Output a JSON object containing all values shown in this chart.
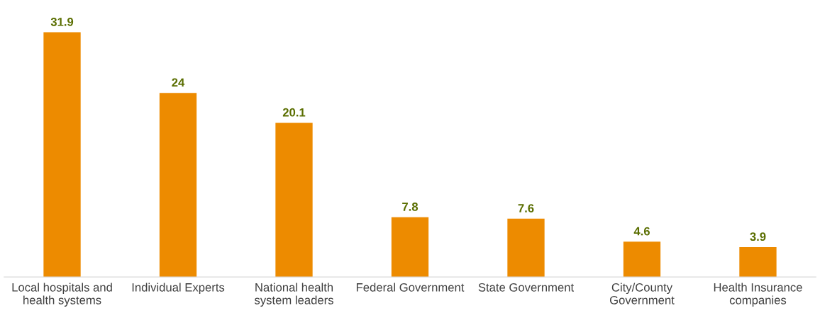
{
  "chart_data": {
    "type": "bar",
    "categories": [
      "Local hospitals and\nhealth systems",
      "Individual Experts",
      "National health\nsystem leaders",
      "Federal Government",
      "State Government",
      "City/County\nGovernment",
      "Health Insurance\ncompanies"
    ],
    "values": [
      31.9,
      24,
      20.1,
      7.8,
      7.6,
      4.6,
      3.9
    ],
    "color": "#ed8b00",
    "data_labels": true,
    "grid": false,
    "legend": false
  }
}
